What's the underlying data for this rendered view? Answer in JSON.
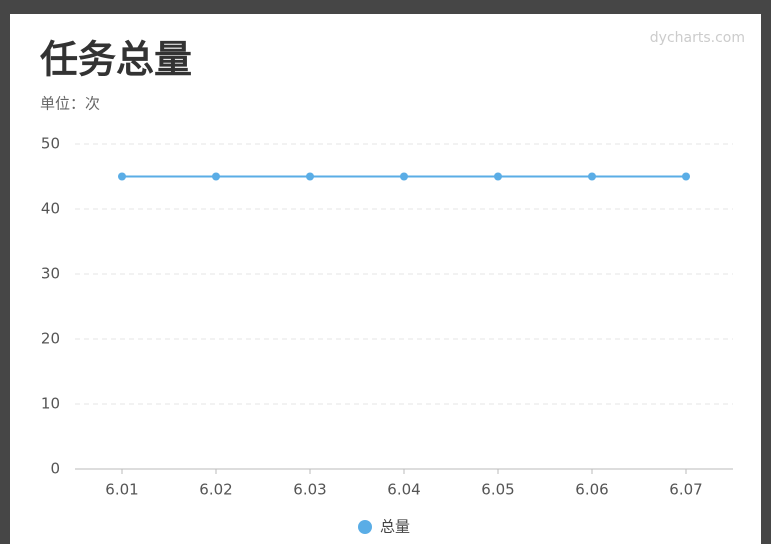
{
  "chart_data": {
    "type": "line",
    "title": "任务总量",
    "subtitle": "单位：次",
    "brand": "dycharts.com",
    "categories": [
      "6.01",
      "6.02",
      "6.03",
      "6.04",
      "6.05",
      "6.06",
      "6.07"
    ],
    "series": [
      {
        "name": "总量",
        "color": "#5aade6",
        "values": [
          45,
          45,
          45,
          45,
          45,
          45,
          45
        ]
      }
    ],
    "ylim": [
      0,
      50
    ],
    "yticks": [
      0,
      10,
      20,
      30,
      40,
      50
    ],
    "grid": true,
    "legend": "bottom"
  }
}
